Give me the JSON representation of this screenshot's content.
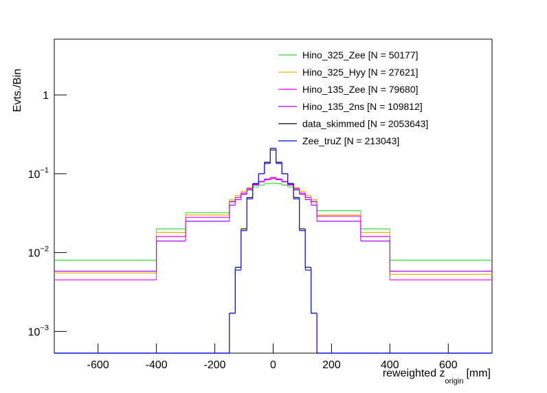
{
  "chart_data": {
    "type": "histogram",
    "y_label": "Evts./Bin",
    "x_label": {
      "main": "reweighted z",
      "sub": "origin",
      "unit": "[mm]"
    },
    "log_y": true,
    "xlim": [
      -750,
      750
    ],
    "ylim": [
      0.00053,
      5.1
    ],
    "xticks": [
      -600,
      -400,
      -200,
      0,
      200,
      400,
      600
    ],
    "yticks": [
      {
        "value": 0.001,
        "label": "10",
        "exponent": "−3"
      },
      {
        "value": 0.01,
        "label": "10",
        "exponent": "−2"
      },
      {
        "value": 0.1,
        "label": "10",
        "exponent": "−1"
      },
      1
    ],
    "series": [
      {
        "name": "Hino_325_Zee [N = 50177]",
        "color": "#33dd33",
        "bins": [
          -750,
          -400,
          -300,
          -150,
          -130,
          -110,
          -90,
          -70,
          -50,
          -30,
          -10,
          10,
          30,
          50,
          70,
          90,
          110,
          130,
          150,
          300,
          400,
          750
        ],
        "values": [
          0.008,
          0.02,
          0.032,
          0.045,
          0.05,
          0.055,
          0.062,
          0.068,
          0.072,
          0.075,
          0.076,
          0.075,
          0.072,
          0.068,
          0.062,
          0.055,
          0.05,
          0.045,
          0.034,
          0.02,
          0.008
        ]
      },
      {
        "name": "Hino_325_Hyy [N = 27621]",
        "color": "#ffaa00",
        "bins": [
          -750,
          -400,
          -300,
          -150,
          -130,
          -110,
          -90,
          -70,
          -50,
          -30,
          -10,
          10,
          30,
          50,
          70,
          90,
          110,
          130,
          150,
          300,
          400,
          750
        ],
        "values": [
          0.0055,
          0.018,
          0.03,
          0.047,
          0.053,
          0.06,
          0.067,
          0.074,
          0.08,
          0.085,
          0.088,
          0.085,
          0.08,
          0.074,
          0.067,
          0.06,
          0.053,
          0.047,
          0.03,
          0.018,
          0.0053
        ]
      },
      {
        "name": "Hino_135_Zee [N = 79680]",
        "color": "#ff00ff",
        "bins": [
          -750,
          -400,
          -300,
          -150,
          -130,
          -110,
          -90,
          -70,
          -50,
          -30,
          -10,
          10,
          30,
          50,
          70,
          90,
          110,
          130,
          150,
          300,
          400,
          750
        ],
        "values": [
          0.0045,
          0.016,
          0.028,
          0.044,
          0.05,
          0.057,
          0.065,
          0.073,
          0.08,
          0.086,
          0.09,
          0.086,
          0.08,
          0.073,
          0.065,
          0.057,
          0.05,
          0.044,
          0.029,
          0.016,
          0.0045
        ]
      },
      {
        "name": "Hino_135_2ns [N = 109812]",
        "color": "#aa00ff",
        "bins": [
          -750,
          -400,
          -300,
          -150,
          -130,
          -110,
          -90,
          -70,
          -50,
          -30,
          -10,
          10,
          30,
          50,
          70,
          90,
          110,
          130,
          150,
          300,
          400,
          750
        ],
        "values": [
          0.0058,
          0.014,
          0.025,
          0.04,
          0.047,
          0.055,
          0.063,
          0.072,
          0.079,
          0.084,
          0.087,
          0.084,
          0.079,
          0.072,
          0.063,
          0.055,
          0.047,
          0.04,
          0.025,
          0.014,
          0.0058
        ]
      },
      {
        "name": "data_skimmed [N = 2053643]",
        "color": "#000000",
        "bins": [
          -750,
          -150,
          -130,
          -110,
          -90,
          -70,
          -50,
          -30,
          -10,
          10,
          30,
          50,
          70,
          90,
          110,
          130,
          150,
          750
        ],
        "values": [
          0,
          0.0017,
          0.0065,
          0.02,
          0.05,
          0.075,
          0.1,
          0.14,
          0.21,
          0.14,
          0.1,
          0.075,
          0.05,
          0.02,
          0.0065,
          0.0017,
          0
        ]
      },
      {
        "name": "Zee_truZ [N = 213043]",
        "color": "#0000ff",
        "bins": [
          -750,
          -150,
          -130,
          -110,
          -90,
          -70,
          -50,
          -30,
          -10,
          10,
          30,
          50,
          70,
          90,
          110,
          130,
          150,
          750
        ],
        "values": [
          0,
          0.0017,
          0.006,
          0.019,
          0.048,
          0.075,
          0.1,
          0.135,
          0.2,
          0.135,
          0.1,
          0.075,
          0.048,
          0.019,
          0.006,
          0.0017,
          0
        ]
      }
    ]
  }
}
